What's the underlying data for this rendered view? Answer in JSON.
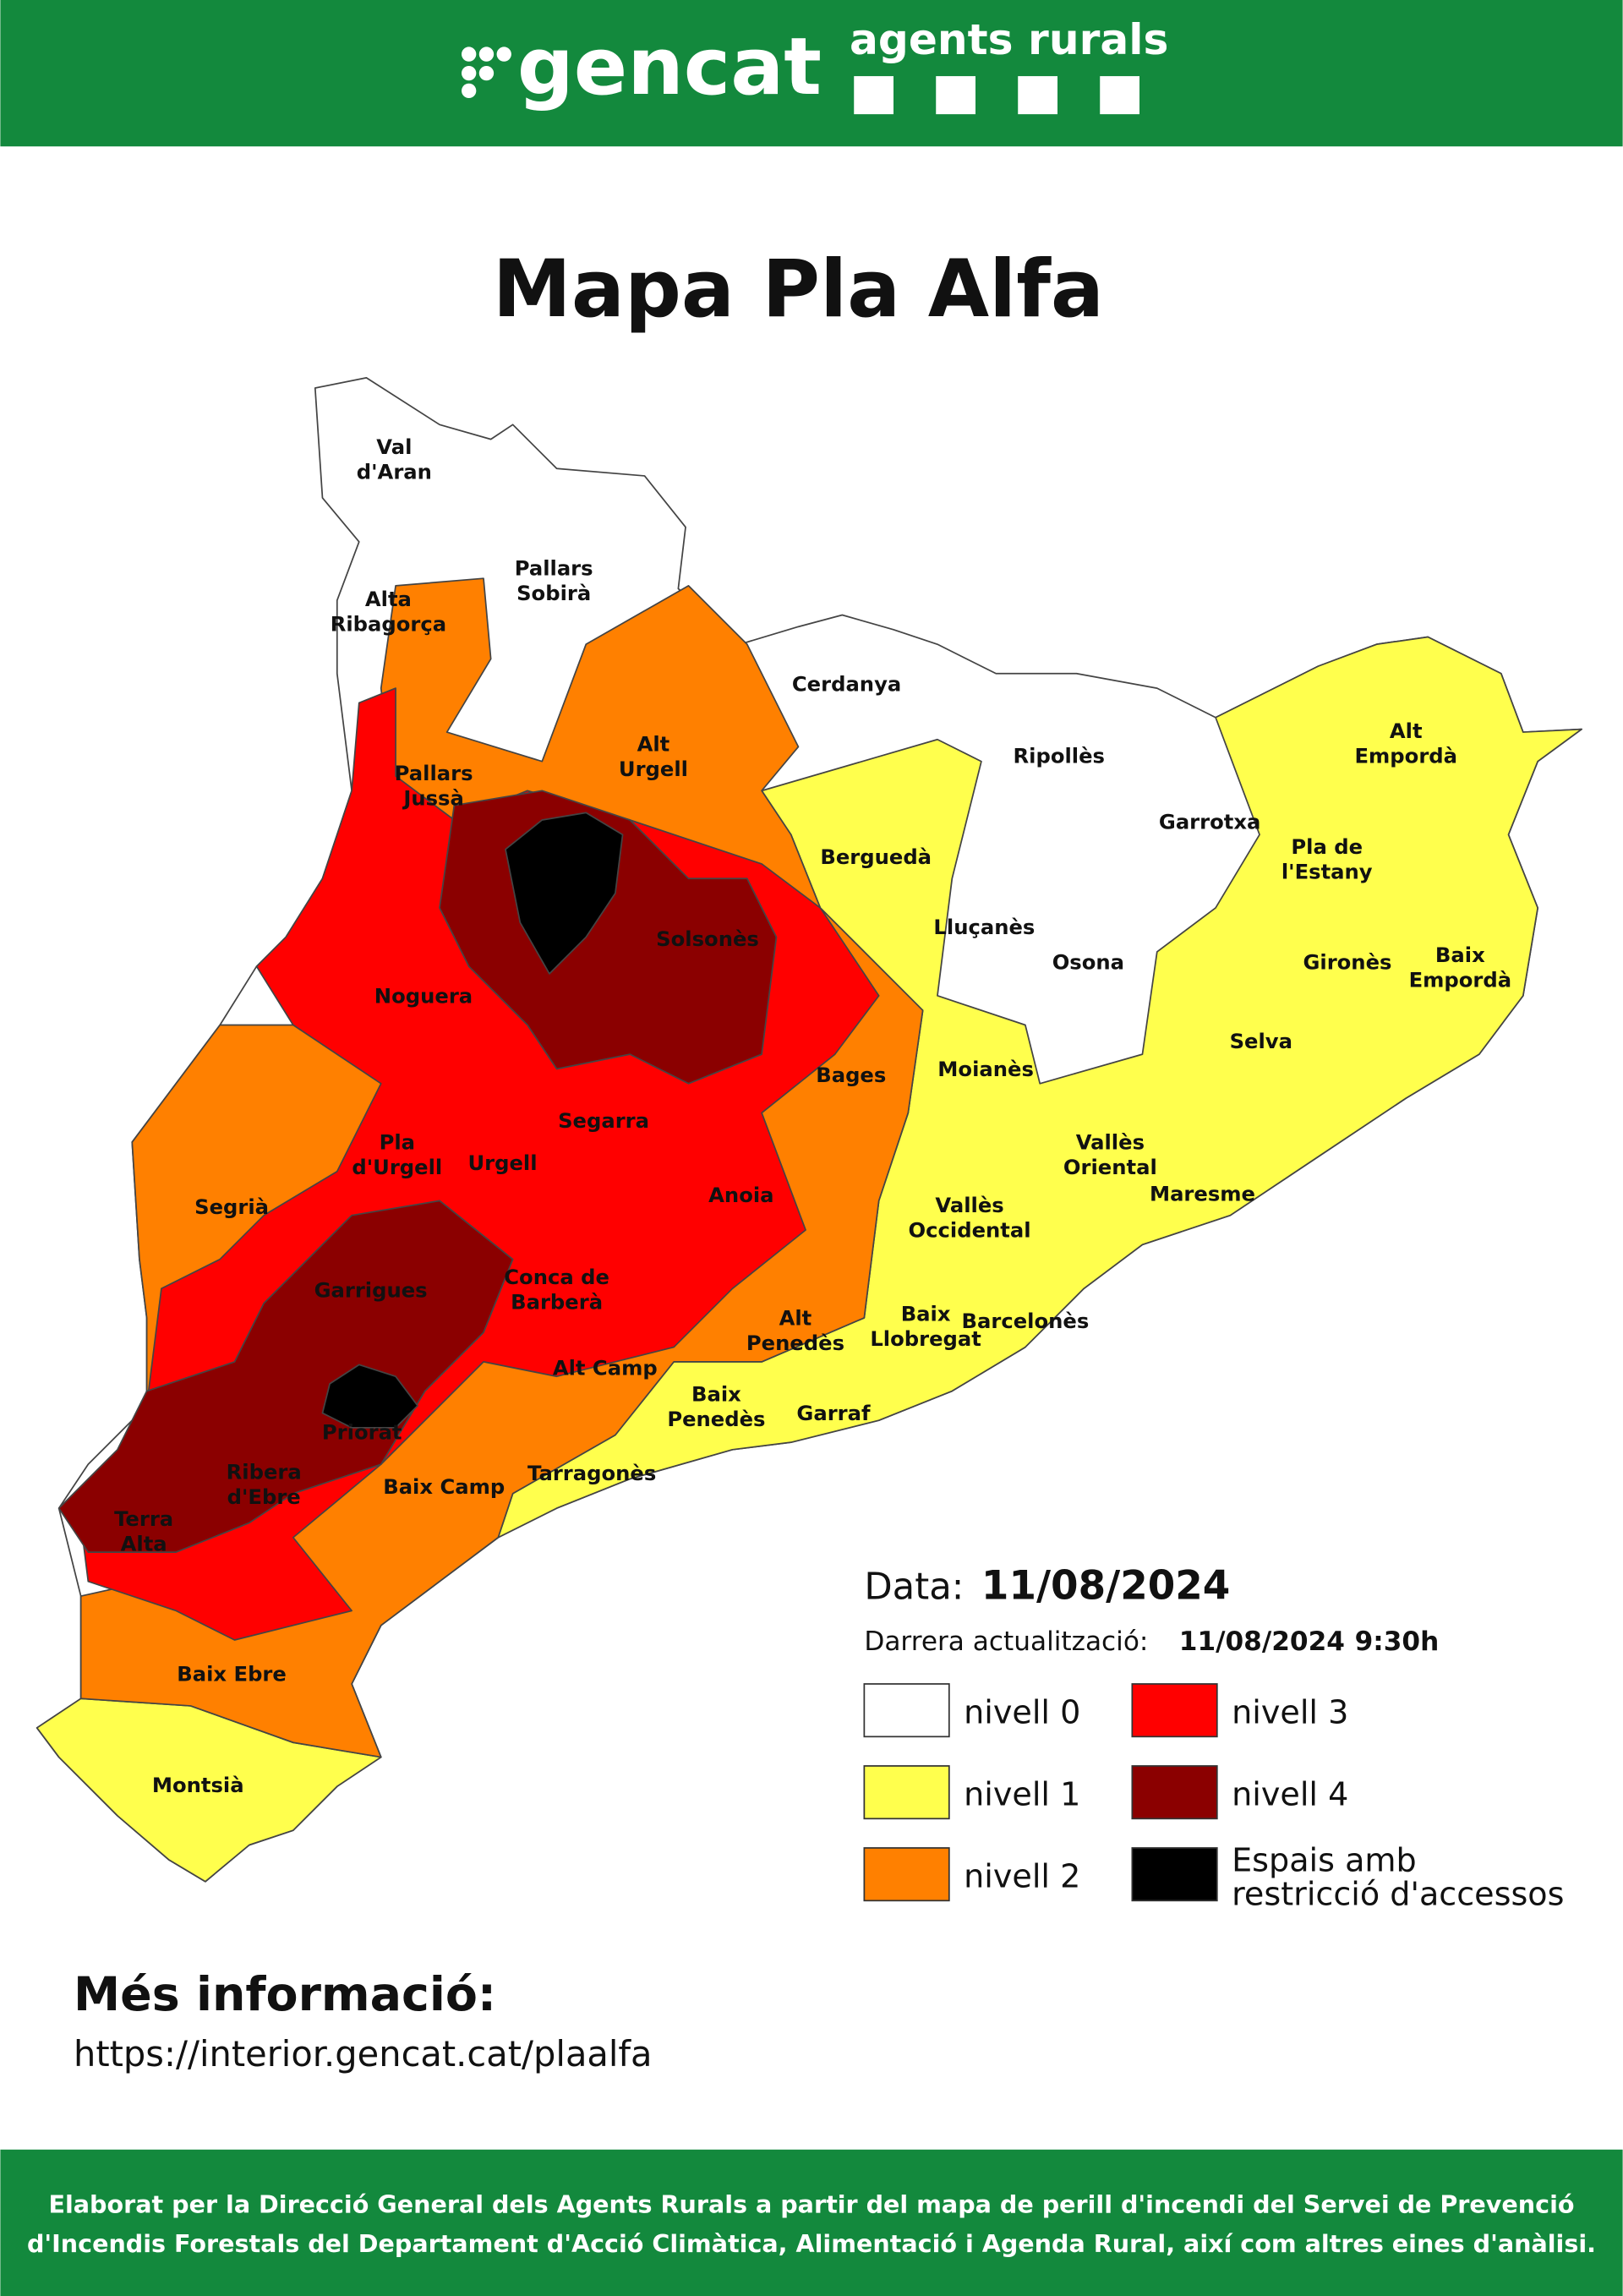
{
  "header": {
    "logo": "gencat",
    "brand": "agents rurals"
  },
  "title": "Mapa Pla Alfa",
  "regions": [
    {
      "lines": [
        "Val",
        "d'Aran"
      ]
    },
    {
      "lines": [
        "Pallars",
        "Sobirà"
      ]
    },
    {
      "lines": [
        "Alta",
        "Ribagorça"
      ]
    },
    {
      "lines": [
        "Pallars",
        "Jussà"
      ]
    },
    {
      "lines": [
        "Alt",
        "Urgell"
      ]
    },
    {
      "lines": [
        "Cerdanya"
      ]
    },
    {
      "lines": [
        "Ripollès"
      ]
    },
    {
      "lines": [
        "Alt",
        "Empordà"
      ]
    },
    {
      "lines": [
        "Garrotxa"
      ]
    },
    {
      "lines": [
        "Pla de",
        "l'Estany"
      ]
    },
    {
      "lines": [
        "Berguedà"
      ]
    },
    {
      "lines": [
        "Solsonès"
      ]
    },
    {
      "lines": [
        "Lluçanès"
      ]
    },
    {
      "lines": [
        "Osona"
      ]
    },
    {
      "lines": [
        "Gironès"
      ]
    },
    {
      "lines": [
        "Baix",
        "Empordà"
      ]
    },
    {
      "lines": [
        "Noguera"
      ]
    },
    {
      "lines": [
        "Selva"
      ]
    },
    {
      "lines": [
        "Moianès"
      ]
    },
    {
      "lines": [
        "Bages"
      ]
    },
    {
      "lines": [
        "Segarra"
      ]
    },
    {
      "lines": [
        "Pla",
        "d'Urgell"
      ]
    },
    {
      "lines": [
        "Urgell"
      ]
    },
    {
      "lines": [
        "Vallès",
        "Oriental"
      ]
    },
    {
      "lines": [
        "Maresme"
      ]
    },
    {
      "lines": [
        "Segrià"
      ]
    },
    {
      "lines": [
        "Anoia"
      ]
    },
    {
      "lines": [
        "Vallès",
        "Occidental"
      ]
    },
    {
      "lines": [
        "Garrigues"
      ]
    },
    {
      "lines": [
        "Conca de",
        "Barberà"
      ]
    },
    {
      "lines": [
        "Alt",
        "Penedès"
      ]
    },
    {
      "lines": [
        "Baix",
        "Llobregat"
      ]
    },
    {
      "lines": [
        "Barcelonès"
      ]
    },
    {
      "lines": [
        "Alt Camp"
      ]
    },
    {
      "lines": [
        "Baix",
        "Penedès"
      ]
    },
    {
      "lines": [
        "Garraf"
      ]
    },
    {
      "lines": [
        "Priorat"
      ]
    },
    {
      "lines": [
        "Ribera",
        "d'Ebre"
      ]
    },
    {
      "lines": [
        "Baix Camp"
      ]
    },
    {
      "lines": [
        "Tarragonès"
      ]
    },
    {
      "lines": [
        "Terra",
        "Alta"
      ]
    },
    {
      "lines": [
        "Baix Ebre"
      ]
    },
    {
      "lines": [
        "Montsià"
      ]
    }
  ],
  "legend": {
    "date_label": "Data:",
    "date": "11/08/2024",
    "update_label": "Darrera actualització:",
    "update_date": "11/08/2024",
    "update_time": "9:30h",
    "levels": [
      {
        "lines": [
          "nivell 0"
        ],
        "color": "#ffffff"
      },
      {
        "lines": [
          "nivell 1"
        ],
        "color": "#ffff4d"
      },
      {
        "lines": [
          "nivell 2"
        ],
        "color": "#ff8000"
      },
      {
        "lines": [
          "nivell 3"
        ],
        "color": "#ff0000"
      },
      {
        "lines": [
          "nivell 4"
        ],
        "color": "#8b0000"
      },
      {
        "lines": [
          "Espais amb",
          "restricció d'accessos"
        ],
        "color": "#000000"
      }
    ]
  },
  "more_info": {
    "title": "Més informació:",
    "url": "https://interior.gencat.cat/plaalfa"
  },
  "footer": {
    "lines": [
      "Elaborat per la Direcció General dels Agents Rurals a partir del mapa de perill d'incendi del Servei de Prevenció",
      "d'Incendis Forestals del Departament d'Acció Climàtica, Alimentació i Agenda Rural, així com altres eines d'anàlisi."
    ]
  }
}
